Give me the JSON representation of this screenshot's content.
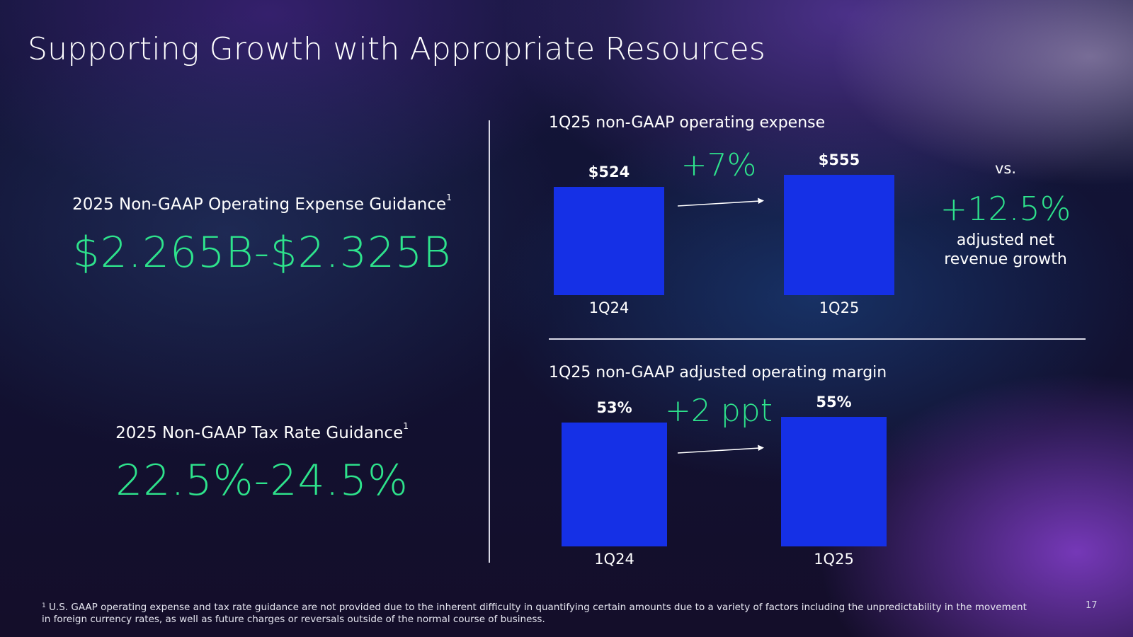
{
  "slide": {
    "title": "Supporting Growth with Appropriate Resources",
    "page_number": "17"
  },
  "guidance": [
    {
      "label": "2025 Non-GAAP Operating Expense Guidance",
      "superscript": "1",
      "value": "$2.265B-$2.325B"
    },
    {
      "label": "2025 Non-GAAP Tax Rate Guidance",
      "superscript": "1",
      "value": "22.5%-24.5%"
    }
  ],
  "comparison": {
    "vs_label": "vs.",
    "revenue_growth": "+12.5%",
    "revenue_growth_label_line1": "adjusted net",
    "revenue_growth_label_line2": "revenue growth"
  },
  "chart_data": [
    {
      "type": "bar",
      "title": "1Q25 non-GAAP operating expense",
      "categories": [
        "1Q24",
        "1Q25"
      ],
      "values": [
        524,
        555
      ],
      "value_labels": [
        "$524",
        "$555"
      ],
      "growth_label": "+7%",
      "unit": "$M",
      "xlabel": "",
      "ylabel": "",
      "ylim": [
        0,
        555
      ]
    },
    {
      "type": "bar",
      "title": "1Q25 non-GAAP adjusted operating margin",
      "categories": [
        "1Q24",
        "1Q25"
      ],
      "values": [
        53,
        55
      ],
      "value_labels": [
        "53%",
        "55%"
      ],
      "growth_label": "+2 ppt",
      "unit": "%",
      "xlabel": "",
      "ylabel": "",
      "ylim": [
        0,
        55
      ]
    }
  ],
  "footnote": {
    "marker": "1",
    "text": "U.S. GAAP operating expense and tax rate guidance are not provided due to the inherent difficulty in quantifying certain amounts due to a variety of factors including the unpredictability in the movement in foreign currency rates, as well as future charges or reversals outside of the normal course of business."
  },
  "colors": {
    "accent_green": "#2ee38c",
    "bar_blue": "#1530e6",
    "text": "#ffffff"
  }
}
